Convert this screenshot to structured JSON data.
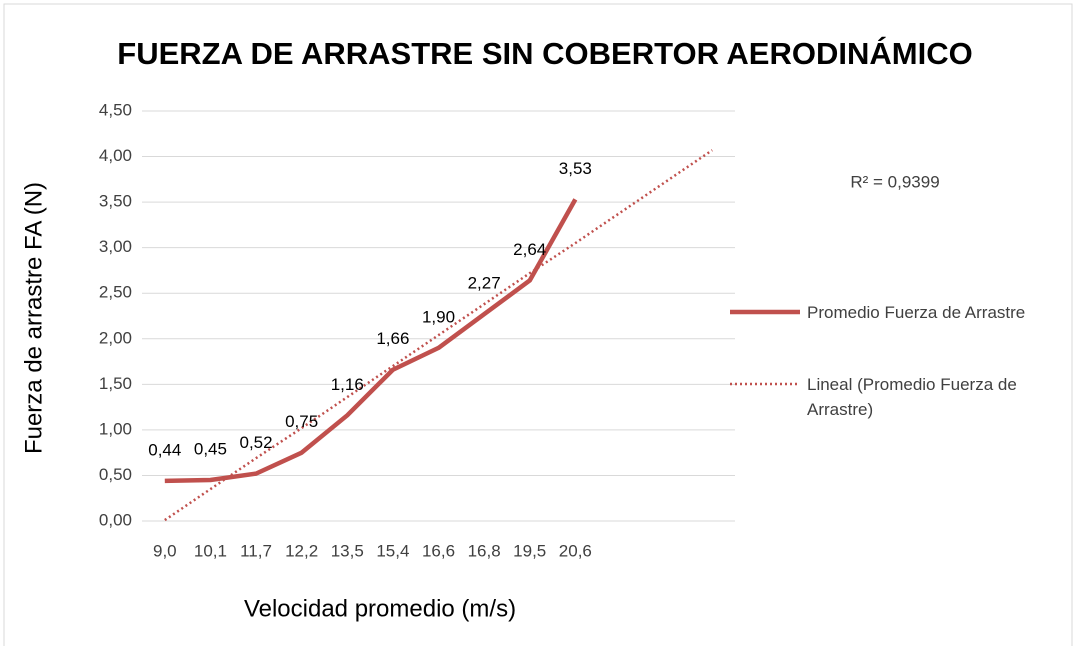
{
  "chart_data": {
    "type": "line",
    "title": "FUERZA DE ARRASTRE SIN COBERTOR AERODINÁMICO",
    "x_label": "Velocidad promedio (m/s)",
    "y_label": "Fuerza de arrastre FA (N)",
    "annotation": "R² = 0,9399",
    "categories": [
      "9,0",
      "10,1",
      "11,7",
      "12,2",
      "13,5",
      "15,4",
      "16,6",
      "16,8",
      "19,5",
      "20,6",
      null,
      null,
      null
    ],
    "series": [
      {
        "name": "Promedio Fuerza de Arrastre",
        "color": "#c0504d",
        "style": "solid",
        "values": [
          0.44,
          0.45,
          0.52,
          0.75,
          1.16,
          1.66,
          1.9,
          2.27,
          2.64,
          3.53,
          null,
          null,
          null
        ],
        "value_labels": [
          "0,44",
          "0,45",
          "0,52",
          "0,75",
          "1,16",
          "1,66",
          "1,90",
          "2,27",
          "2,64",
          "3,53",
          null,
          null,
          null
        ]
      },
      {
        "name": "Lineal (Promedio Fuerza de Arrastre)",
        "color": "#c0504d",
        "style": "dotted",
        "values": [
          0.01,
          0.35,
          0.69,
          1.02,
          1.36,
          1.7,
          2.04,
          2.38,
          2.72,
          3.05,
          3.39,
          3.73,
          4.07
        ]
      }
    ],
    "ylim": [
      0,
      4.5
    ],
    "yticks": [
      {
        "value": 0,
        "label": "0,00"
      },
      {
        "value": 0.5,
        "label": "0,50"
      },
      {
        "value": 1,
        "label": "1,00"
      },
      {
        "value": 1.5,
        "label": "1,50"
      },
      {
        "value": 2,
        "label": "2,00"
      },
      {
        "value": 2.5,
        "label": "2,50"
      },
      {
        "value": 3,
        "label": "3,00"
      },
      {
        "value": 3.5,
        "label": "3,50"
      },
      {
        "value": 4,
        "label": "4,00"
      },
      {
        "value": 4.5,
        "label": "4,50"
      }
    ],
    "grid": true,
    "legend": "right"
  }
}
